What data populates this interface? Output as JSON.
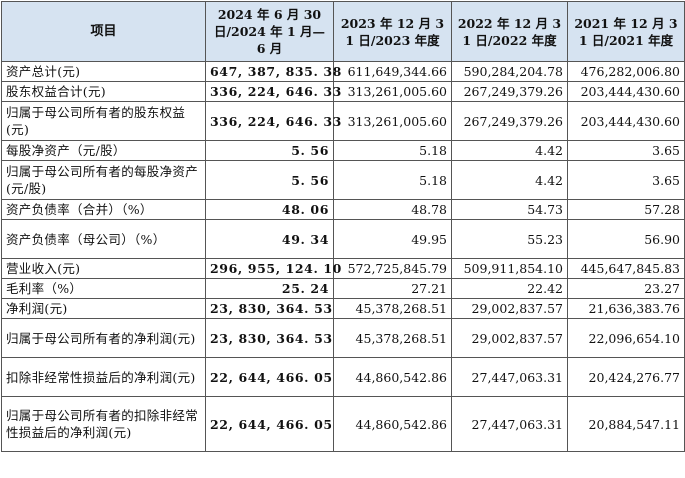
{
  "header": {
    "item": "项目",
    "periods": [
      "2024 年 6 月 30 日/2024 年 1 月—6 月",
      "2023 年 12 月 31 日/2023 年度",
      "2022 年 12 月 31 日/2022 年度",
      "2021 年 12 月 31 日/2021 年度"
    ]
  },
  "rows": [
    {
      "label": "资产总计(元)",
      "values": [
        "647, 387, 835. 38",
        "611,649,344.66",
        "590,284,204.78",
        "476,282,006.80"
      ]
    },
    {
      "label": "股东权益合计(元)",
      "values": [
        "336, 224, 646. 33",
        "313,261,005.60",
        "267,249,379.26",
        "203,444,430.60"
      ]
    },
    {
      "label": "归属于母公司所有者的股东权益(元)",
      "values": [
        "336, 224, 646. 33",
        "313,261,005.60",
        "267,249,379.26",
        "203,444,430.60"
      ]
    },
    {
      "label": "每股净资产（元/股）",
      "values": [
        "5. 56",
        "5.18",
        "4.42",
        "3.65"
      ]
    },
    {
      "label": "归属于母公司所有者的每股净资产(元/股)",
      "values": [
        "5. 56",
        "5.18",
        "4.42",
        "3.65"
      ]
    },
    {
      "label": "资产负债率（合并）（%）",
      "values": [
        "48. 06",
        "48.78",
        "54.73",
        "57.28"
      ]
    },
    {
      "label": "资产负债率（母公司）（%）",
      "values": [
        "49. 34",
        "49.95",
        "55.23",
        "56.90"
      ]
    },
    {
      "label": "营业收入(元)",
      "values": [
        "296, 955, 124. 10",
        "572,725,845.79",
        "509,911,854.10",
        "445,647,845.83"
      ]
    },
    {
      "label": "毛利率（%）",
      "values": [
        "25. 24",
        "27.21",
        "22.42",
        "23.27"
      ]
    },
    {
      "label": "净利润(元)",
      "values": [
        "23, 830, 364. 53",
        "45,378,268.51",
        "29,002,837.57",
        "21,636,383.76"
      ]
    },
    {
      "label": "归属于母公司所有者的净利润(元)",
      "values": [
        "23, 830, 364. 53",
        "45,378,268.51",
        "29,002,837.57",
        "22,096,654.10"
      ]
    },
    {
      "label": "扣除非经常性损益后的净利润(元)",
      "values": [
        "22, 644, 466. 05",
        "44,860,542.86",
        "27,447,063.31",
        "20,424,276.77"
      ]
    },
    {
      "label": "归属于母公司所有者的扣除非经常性损益后的净利润(元)",
      "values": [
        "22, 644, 466. 05",
        "44,860,542.86",
        "27,447,063.31",
        "20,884,547.11"
      ]
    }
  ]
}
